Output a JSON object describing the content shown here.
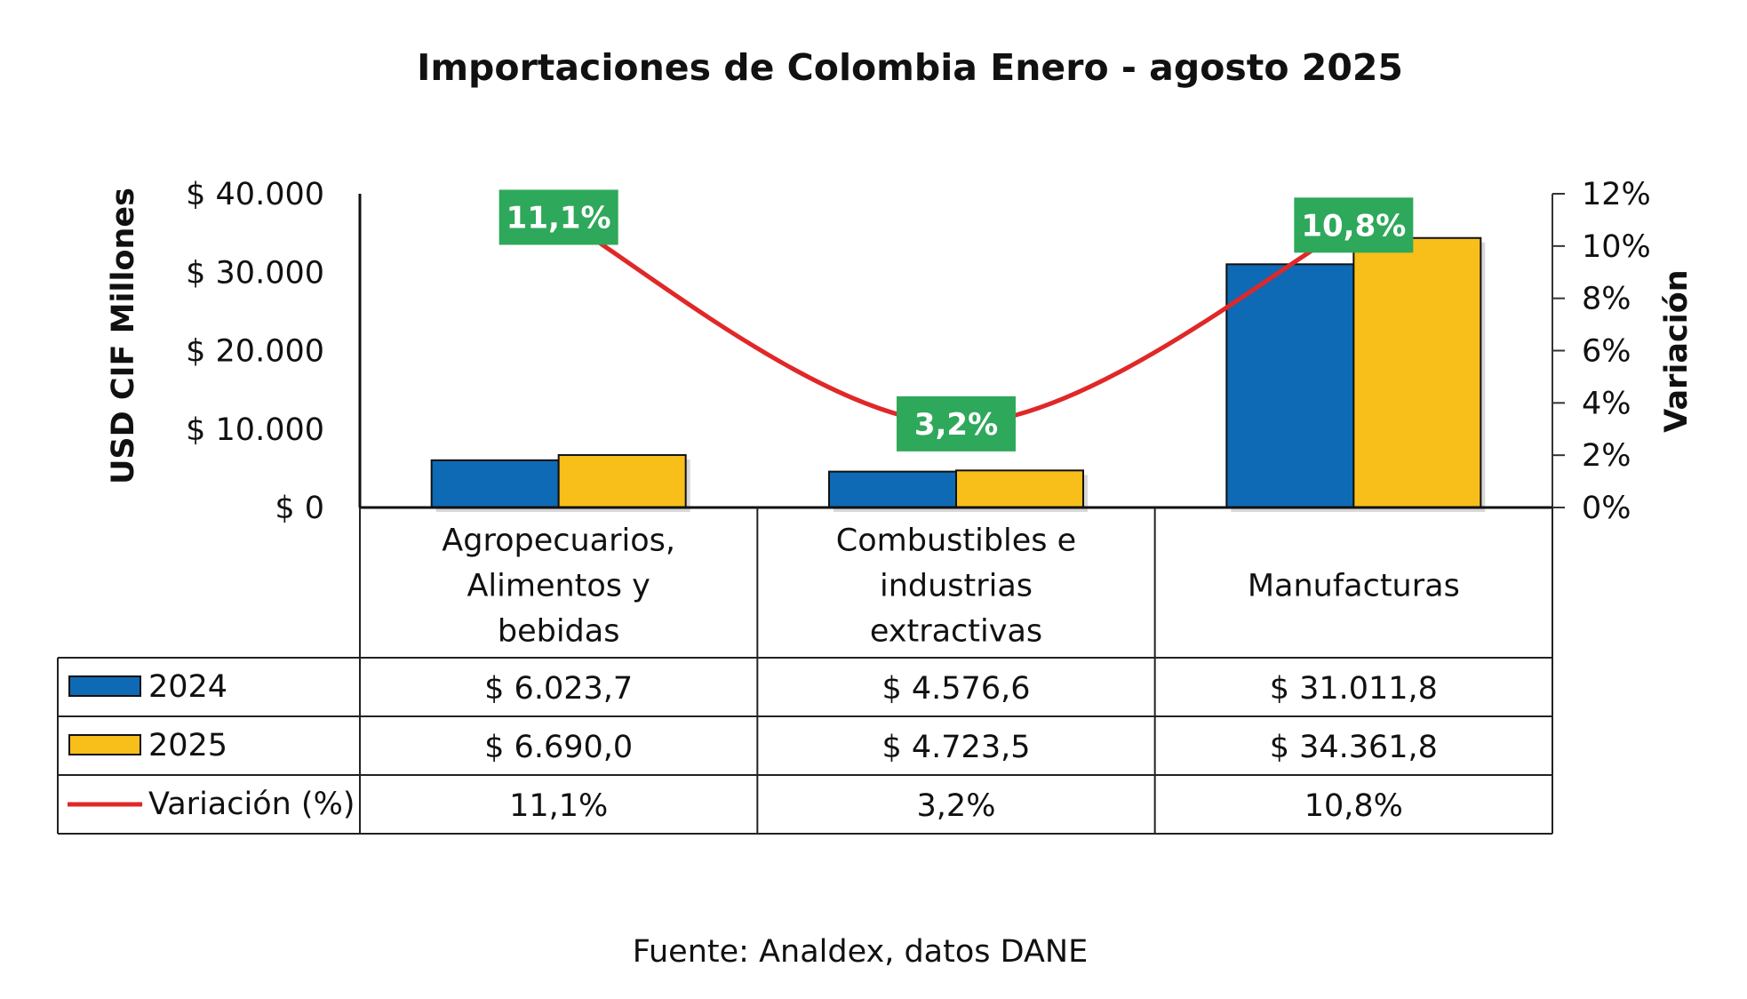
{
  "chart_data": {
    "type": "bar",
    "title": "Importaciones de Colombia Enero - agosto 2025",
    "ylabel": "USD CIF Millones",
    "y2label": "Variación",
    "ylim": [
      0,
      40000
    ],
    "y2lim": [
      0,
      12
    ],
    "yticks": [
      "$ 0",
      "$ 10.000",
      "$ 20.000",
      "$ 30.000",
      "$ 40.000"
    ],
    "y2ticks": [
      "0%",
      "2%",
      "4%",
      "6%",
      "8%",
      "10%",
      "12%"
    ],
    "categories": [
      [
        "Agropecuarios,",
        "Alimentos y",
        "bebidas"
      ],
      [
        "Combustibles e",
        "industrias",
        "extractivas"
      ],
      [
        "Manufacturas"
      ]
    ],
    "series": [
      {
        "name": "2024",
        "type": "bar",
        "color": "#0E6AB4",
        "values": [
          6023.7,
          4576.6,
          31011.8
        ],
        "labels": [
          "$ 6.023,7",
          "$ 4.576,6",
          "$ 31.011,8"
        ]
      },
      {
        "name": "2025",
        "type": "bar",
        "color": "#F8BE1A",
        "values": [
          6690.0,
          4723.5,
          34361.8
        ],
        "labels": [
          "$ 6.690,0",
          "$ 4.723,5",
          "$ 34.361,8"
        ]
      },
      {
        "name": "Variación (%)",
        "type": "line",
        "axis": "right",
        "color": "#E02828",
        "values": [
          11.1,
          3.2,
          10.8
        ],
        "labels": [
          "11,1%",
          "3,2%",
          "10,8%"
        ]
      }
    ],
    "badge_color": "#2EA85A",
    "grid": false,
    "legend": "data-table"
  },
  "source": "Fuente: Analdex, datos DANE"
}
